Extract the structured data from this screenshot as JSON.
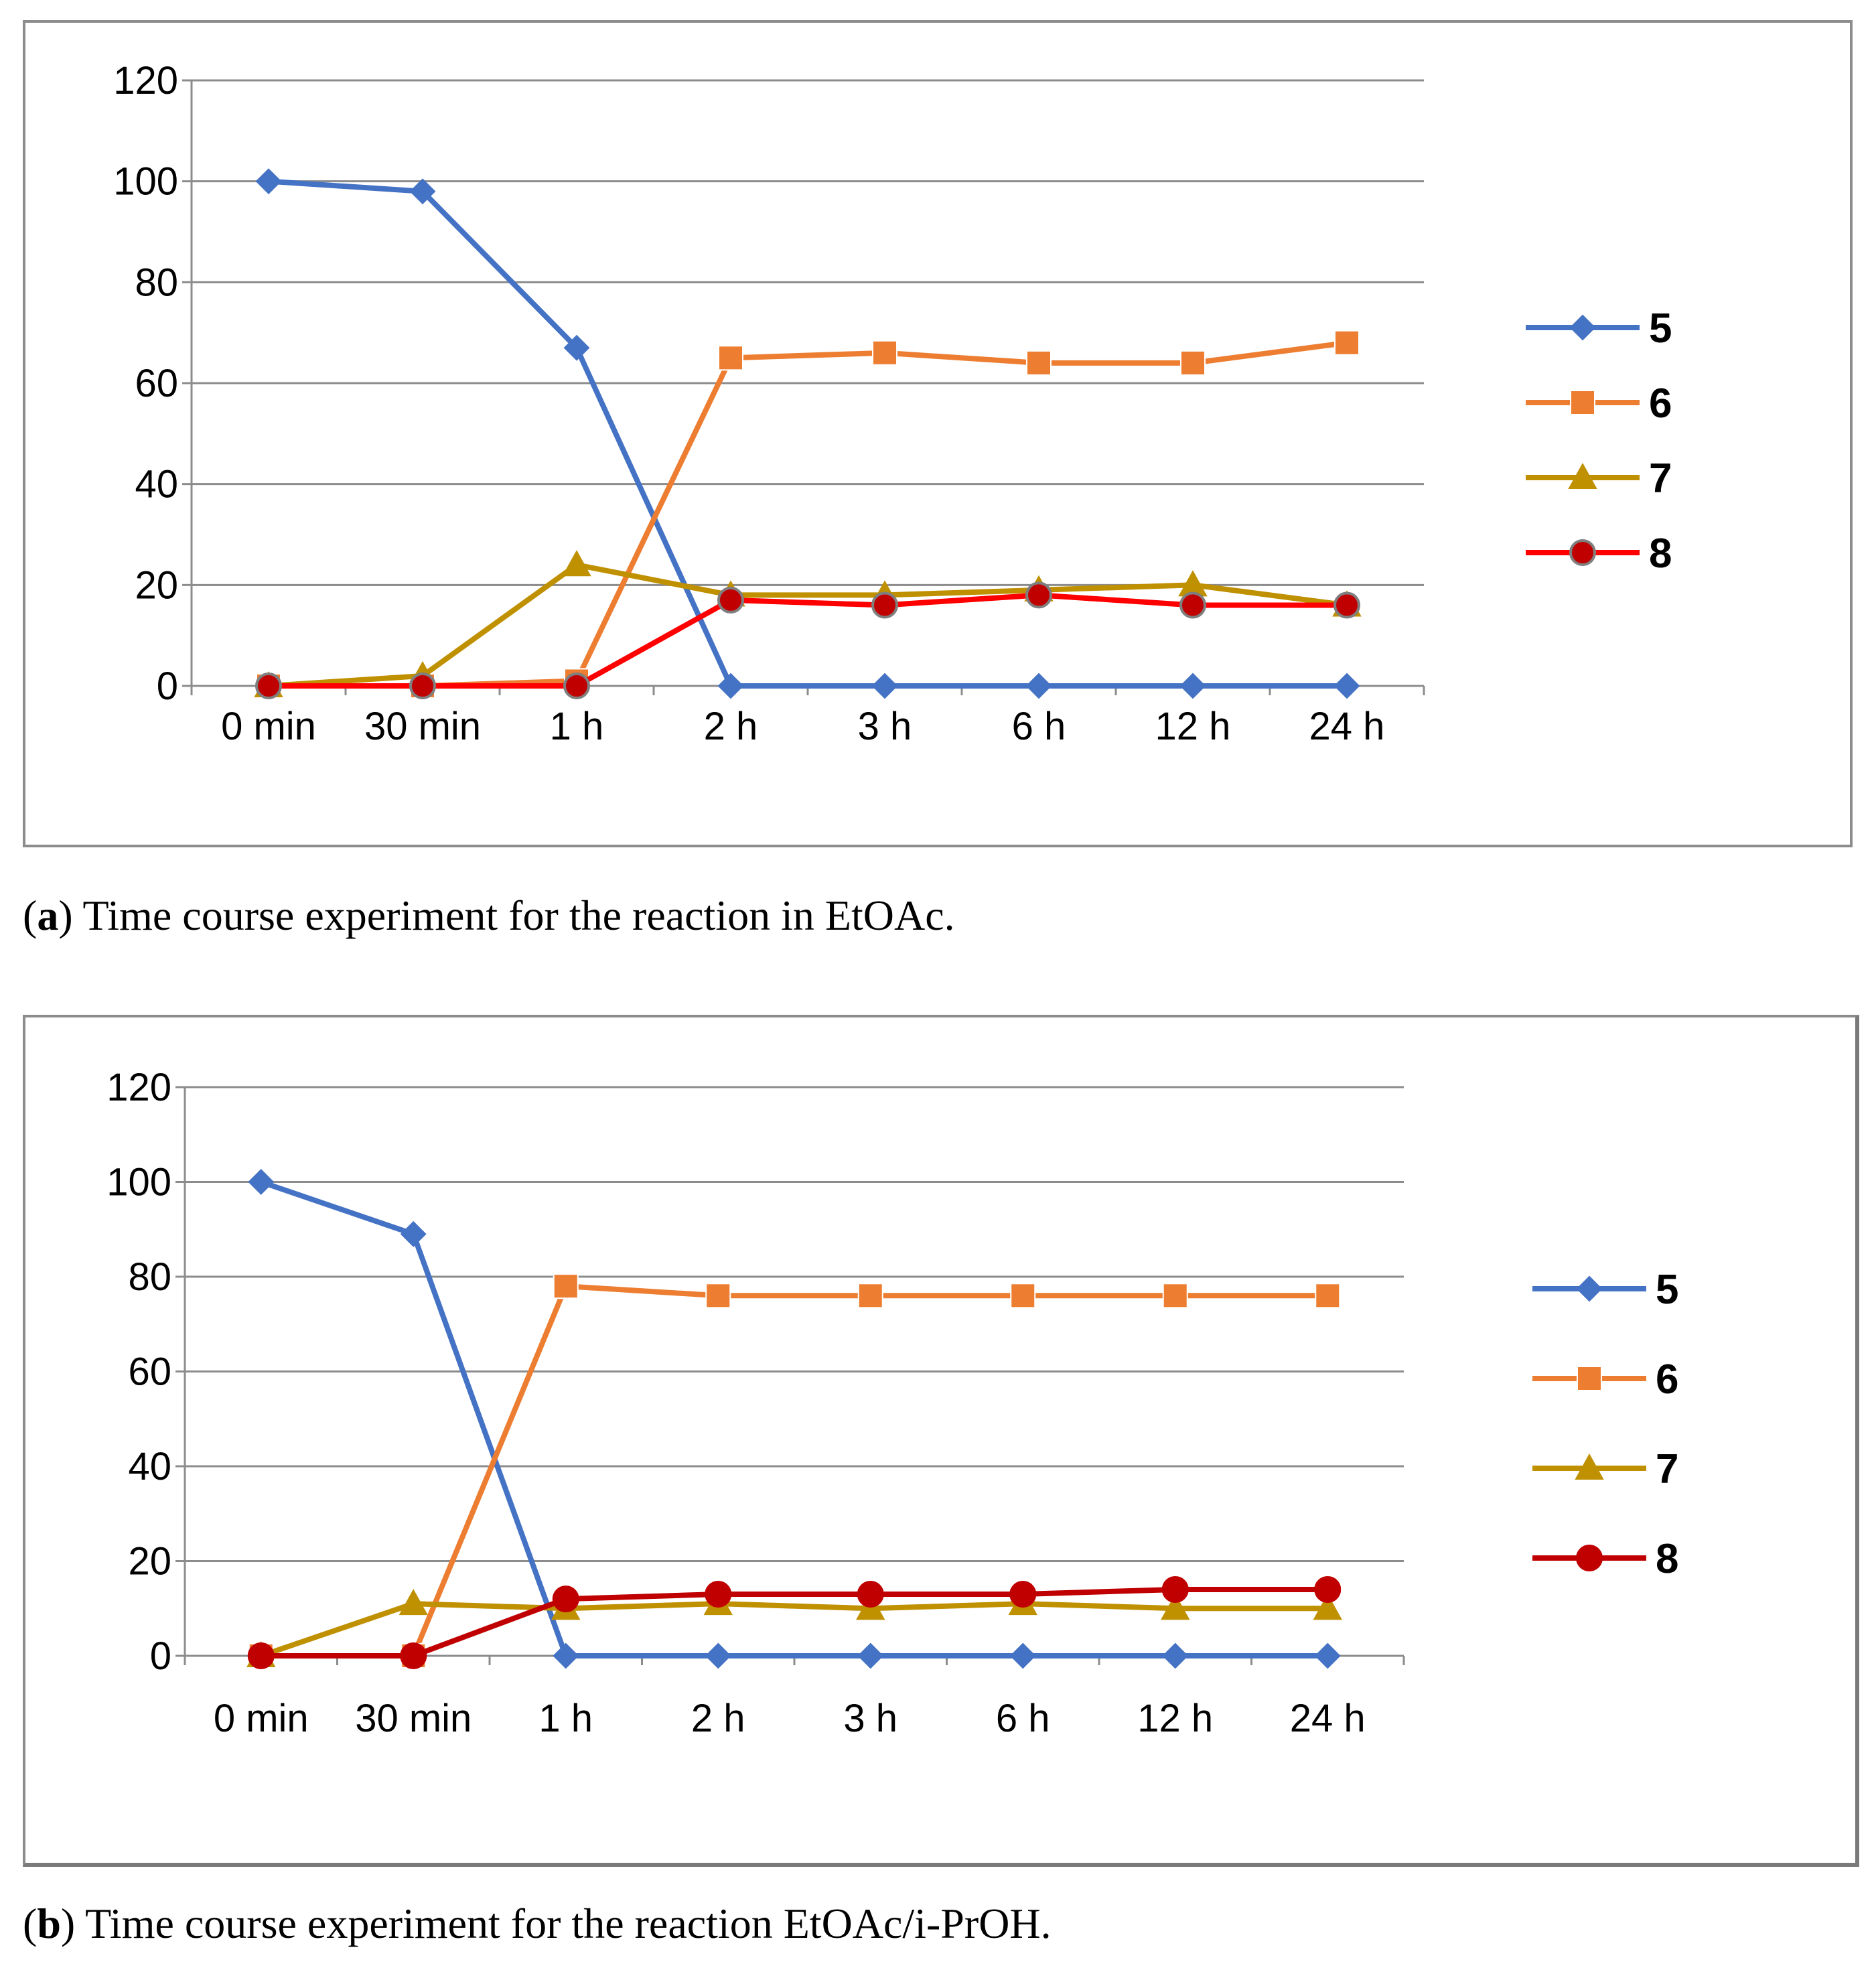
{
  "chart_data": [
    {
      "type": "line",
      "title": "",
      "xlabel": "",
      "ylabel": "",
      "ylim": [
        0,
        120
      ],
      "yticks": [
        0,
        20,
        40,
        60,
        80,
        100,
        120
      ],
      "categories": [
        "0 min",
        "30 min",
        "1 h",
        "2 h",
        "3 h",
        "6 h",
        "12 h",
        "24 h"
      ],
      "legend_position": "right",
      "series": [
        {
          "name": "5",
          "color": "#4472c4",
          "marker": "diamond",
          "values": [
            100,
            98,
            67,
            0,
            0,
            0,
            0,
            0
          ]
        },
        {
          "name": "6",
          "color": "#ed7d31",
          "marker": "square",
          "values": [
            0,
            0,
            1,
            65,
            66,
            64,
            64,
            68
          ]
        },
        {
          "name": "7",
          "color": "#bf9000",
          "marker": "triangle",
          "values": [
            0,
            2,
            24,
            18,
            18,
            19,
            20,
            16
          ]
        },
        {
          "name": "8",
          "color": "#ff0000",
          "marker": "circle",
          "marker_fill": "#c00000",
          "marker_stroke": "#7f7f7f",
          "values": [
            0,
            0,
            0,
            17,
            16,
            18,
            16,
            16
          ]
        }
      ]
    },
    {
      "type": "line",
      "title": "",
      "xlabel": "",
      "ylabel": "",
      "ylim": [
        0,
        120
      ],
      "yticks": [
        0,
        20,
        40,
        60,
        80,
        100,
        120
      ],
      "categories": [
        "0 min",
        "30 min",
        "1 h",
        "2 h",
        "3 h",
        "6 h",
        "12 h",
        "24 h"
      ],
      "legend_position": "right",
      "series": [
        {
          "name": "5",
          "color": "#4472c4",
          "marker": "diamond",
          "values": [
            100,
            89,
            0,
            0,
            0,
            0,
            0,
            0
          ]
        },
        {
          "name": "6",
          "color": "#ed7d31",
          "marker": "square",
          "values": [
            0,
            0,
            78,
            76,
            76,
            76,
            76,
            76
          ]
        },
        {
          "name": "7",
          "color": "#bf9000",
          "marker": "triangle",
          "values": [
            0,
            11,
            10,
            11,
            10,
            11,
            10,
            10
          ]
        },
        {
          "name": "8",
          "color": "#c00000",
          "marker": "circle",
          "marker_fill": "#c00000",
          "marker_stroke": "#c00000",
          "values": [
            0,
            0,
            12,
            13,
            13,
            13,
            14,
            14
          ]
        }
      ]
    }
  ],
  "captions": {
    "a_label": "a",
    "a_text": " Time course experiment for the reaction in EtOAc.",
    "b_label": "b",
    "b_text": " Time course experiment for the reaction EtOAc/i-PrOH."
  }
}
